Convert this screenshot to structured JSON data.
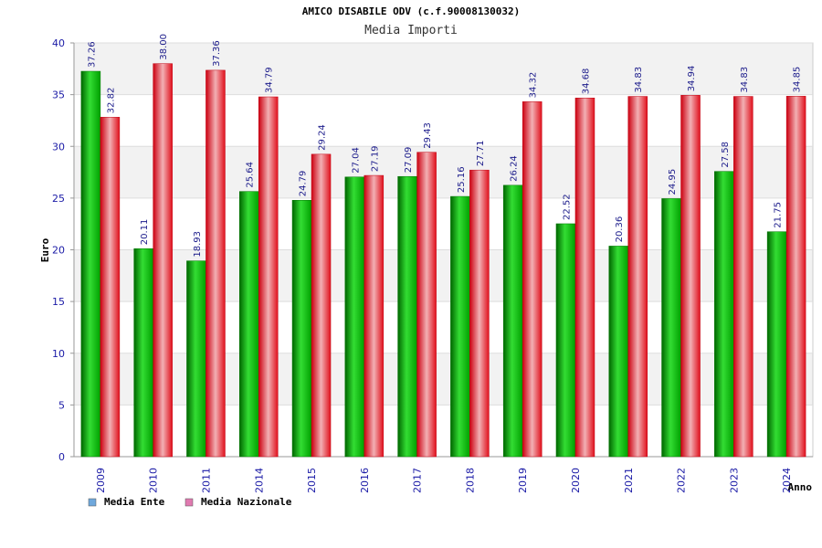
{
  "chart_data": {
    "type": "bar",
    "title": "AMICO DISABILE ODV (c.f.90008130032)",
    "subtitle": "Media Importi",
    "xlabel": "Anno",
    "ylabel": "Euro",
    "ylim": [
      0,
      40
    ],
    "yticks": [
      0,
      5,
      10,
      15,
      20,
      25,
      30,
      35,
      40
    ],
    "grid": true,
    "legend_position": "bottom-left",
    "categories": [
      "2009",
      "2010",
      "2011",
      "2014",
      "2015",
      "2016",
      "2017",
      "2018",
      "2019",
      "2020",
      "2021",
      "2022",
      "2023",
      "2024"
    ],
    "series": [
      {
        "name": "Media Ente",
        "color": "#00aa00",
        "legend_color": "#6fa8dc",
        "values": [
          37.26,
          20.11,
          18.93,
          25.64,
          24.79,
          27.04,
          27.09,
          25.16,
          26.24,
          22.52,
          20.36,
          24.95,
          27.58,
          21.75
        ],
        "labels": [
          "37.26",
          "20.11",
          "18.93",
          "25.64",
          "24.79",
          "27.04",
          "27.09",
          "25.16",
          "26.24",
          "22.52",
          "20.36",
          "24.95",
          "27.58",
          "21.75"
        ]
      },
      {
        "name": "Media Nazionale",
        "color": "#e8141e",
        "legend_color": "#e07ab0",
        "values": [
          32.82,
          38.0,
          37.36,
          34.79,
          29.24,
          27.19,
          29.43,
          27.71,
          34.32,
          34.68,
          34.83,
          34.94,
          34.83,
          34.85
        ],
        "labels": [
          "32.82",
          "38.00",
          "37.36",
          "34.79",
          "29.24",
          "27.19",
          "29.43",
          "27.71",
          "34.32",
          "34.68",
          "34.83",
          "34.94",
          "34.83",
          "34.85"
        ]
      }
    ]
  }
}
